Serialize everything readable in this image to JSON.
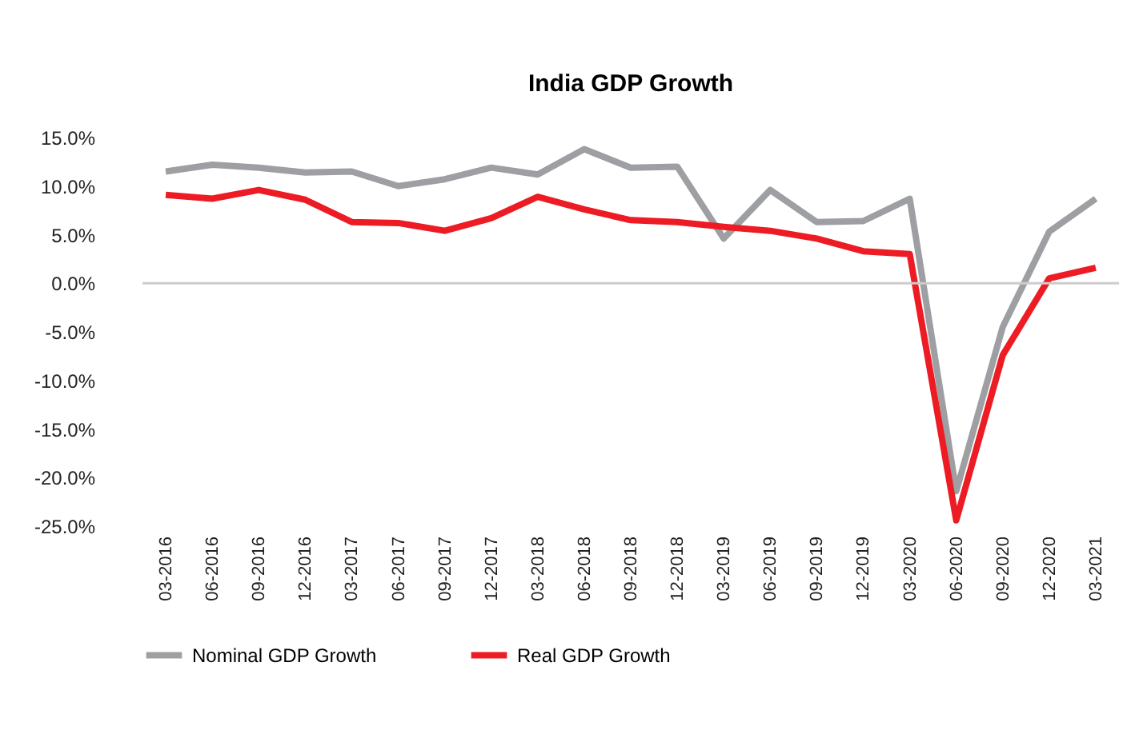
{
  "chart_data": {
    "type": "line",
    "title": "India GDP Growth",
    "categories": [
      "03-2016",
      "06-2016",
      "09-2016",
      "12-2016",
      "03-2017",
      "06-2017",
      "09-2017",
      "12-2017",
      "03-2018",
      "06-2018",
      "09-2018",
      "12-2018",
      "03-2019",
      "06-2019",
      "09-2019",
      "12-2019",
      "03-2020",
      "06-2020",
      "09-2020",
      "12-2020",
      "03-2021"
    ],
    "series": [
      {
        "name": "Nominal GDP Growth",
        "color": "#9d9fa2",
        "values": [
          11.5,
          12.2,
          11.9,
          11.4,
          11.5,
          10.0,
          10.7,
          11.9,
          11.2,
          13.8,
          11.9,
          12.0,
          4.6,
          9.6,
          6.3,
          6.4,
          8.7,
          -21.4,
          -4.5,
          5.3,
          8.7
        ]
      },
      {
        "name": "Real GDP Growth",
        "color": "#ed1c24",
        "values": [
          9.1,
          8.7,
          9.6,
          8.6,
          6.3,
          6.2,
          5.4,
          6.7,
          8.9,
          7.6,
          6.5,
          6.3,
          5.8,
          5.4,
          4.6,
          3.3,
          3.0,
          -24.4,
          -7.4,
          0.5,
          1.6
        ]
      }
    ],
    "ylim": [
      -25,
      15
    ],
    "yticks": [
      {
        "value": -25,
        "label": "-25.0%"
      },
      {
        "value": -20,
        "label": "-20.0%"
      },
      {
        "value": -15,
        "label": "-15.0%"
      },
      {
        "value": -10,
        "label": "-10.0%"
      },
      {
        "value": -5,
        "label": "-5.0%"
      },
      {
        "value": 0,
        "label": "0.0%"
      },
      {
        "value": 5,
        "label": "5.0%"
      },
      {
        "value": 10,
        "label": "10.0%"
      },
      {
        "value": 15,
        "label": "15.0%"
      }
    ],
    "ref_lines": [
      {
        "axis": "y",
        "value": 0,
        "color": "#cccccc"
      }
    ],
    "grid": false,
    "legend": "bottom",
    "marker": "none",
    "line_style": "solid"
  }
}
